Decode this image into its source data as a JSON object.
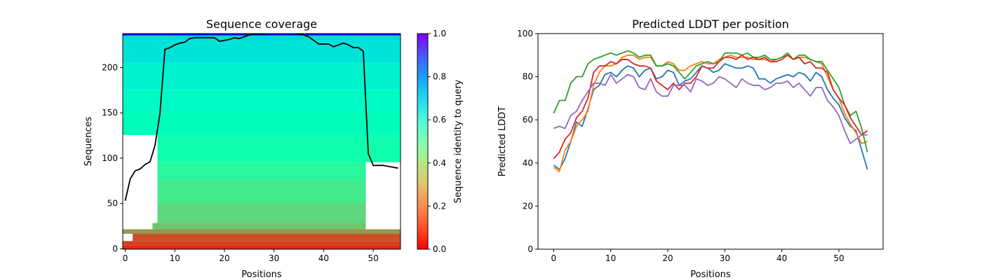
{
  "chart_data": [
    {
      "type": "heatmap",
      "title": "Sequence coverage",
      "xlabel": "Positions",
      "ylabel": "Sequences",
      "xlim": [
        -0.5,
        55.5
      ],
      "ylim": [
        -0.5,
        237.5
      ],
      "xticks": [
        0,
        10,
        20,
        30,
        40,
        50
      ],
      "yticks": [
        0,
        50,
        100,
        150,
        200
      ],
      "colorbar": {
        "label": "Sequence identity to query",
        "range": [
          0.0,
          1.0
        ],
        "ticks": [
          "0.0",
          "0.2",
          "0.4",
          "0.6",
          "0.8",
          "1.0"
        ],
        "colormap": "rainbow_r"
      },
      "coverage_bands": [
        {
          "rows": [
            0,
            3
          ],
          "identity": 0.05,
          "cols": [
            0,
            55
          ]
        },
        {
          "rows": [
            4,
            8
          ],
          "identity": 0.08,
          "cols": [
            0,
            55
          ]
        },
        {
          "rows": [
            9,
            16
          ],
          "identity": 0.1,
          "cols": [
            2,
            55
          ]
        },
        {
          "rows": [
            17,
            21
          ],
          "identity": 0.2,
          "cols": [
            0,
            55
          ]
        },
        {
          "rows": [
            22,
            28
          ],
          "identity": 0.28,
          "cols": [
            6,
            48
          ]
        },
        {
          "rows": [
            29,
            50
          ],
          "identity": 0.32,
          "cols": [
            7,
            48
          ]
        },
        {
          "rows": [
            51,
            75
          ],
          "identity": 0.37,
          "cols": [
            7,
            48
          ]
        },
        {
          "rows": [
            76,
            95
          ],
          "identity": 0.42,
          "cols": [
            7,
            48
          ]
        },
        {
          "rows": [
            96,
            125
          ],
          "identity": 0.47,
          "cols": [
            7,
            55
          ]
        },
        {
          "rows": [
            126,
            150
          ],
          "identity": 0.52,
          "cols": [
            0,
            55
          ]
        },
        {
          "rows": [
            151,
            175
          ],
          "identity": 0.56,
          "cols": [
            0,
            55
          ]
        },
        {
          "rows": [
            176,
            205
          ],
          "identity": 0.6,
          "cols": [
            0,
            55
          ]
        },
        {
          "rows": [
            206,
            230
          ],
          "identity": 0.65,
          "cols": [
            0,
            55
          ]
        },
        {
          "rows": [
            231,
            235
          ],
          "identity": 0.68,
          "cols": [
            0,
            55
          ]
        },
        {
          "rows": [
            236,
            237
          ],
          "identity": 1.0,
          "cols": [
            0,
            55
          ]
        }
      ],
      "coverage_line": [
        53,
        77,
        86,
        88,
        93,
        96,
        114,
        149,
        220,
        222,
        225,
        227,
        228,
        232,
        233,
        233,
        233,
        233,
        233,
        229,
        230,
        231,
        233,
        232,
        234,
        236,
        237,
        237,
        237,
        238,
        238,
        238,
        238,
        238,
        238,
        237,
        236,
        234,
        230,
        226,
        226,
        226,
        223,
        225,
        227,
        225,
        222,
        222,
        218,
        105,
        92,
        92,
        92,
        91,
        90,
        89
      ]
    },
    {
      "type": "line",
      "title": "Predicted LDDT per position",
      "xlabel": "Positions",
      "ylabel": "Predicted LDDT",
      "xlim": [
        -2.75,
        57.75
      ],
      "ylim": [
        0,
        100
      ],
      "xticks": [
        0,
        10,
        20,
        30,
        40,
        50
      ],
      "yticks": [
        0,
        20,
        40,
        60,
        80,
        100
      ],
      "x_start": 0,
      "series": [
        {
          "color": "#1f77b4",
          "values": [
            39,
            37,
            42,
            50,
            59,
            57,
            65,
            74,
            76,
            81,
            82,
            80,
            83,
            85,
            84,
            80,
            83,
            84,
            79,
            80,
            83,
            82,
            76,
            78,
            79,
            82,
            85,
            84,
            82,
            83,
            86,
            85,
            84,
            84,
            85,
            84,
            79,
            79,
            77,
            79,
            80,
            81,
            80,
            82,
            81,
            78,
            82,
            80,
            74,
            70,
            67,
            61,
            57,
            55,
            46,
            37
          ]
        },
        {
          "color": "#ff7f0e",
          "values": [
            38,
            36,
            46,
            50,
            57,
            60,
            64,
            76,
            82,
            85,
            85,
            86,
            89,
            90,
            90,
            88,
            89,
            89,
            85,
            85,
            87,
            86,
            83,
            83,
            85,
            86,
            87,
            86,
            86,
            88,
            89,
            90,
            89,
            89,
            89,
            88,
            88,
            88,
            87,
            88,
            89,
            90,
            88,
            89,
            89,
            88,
            87,
            86,
            80,
            74,
            70,
            63,
            58,
            54,
            49,
            50
          ]
        },
        {
          "color": "#2ca02c",
          "values": [
            63,
            69,
            69,
            77,
            80,
            80,
            86,
            88,
            89,
            90,
            91,
            90,
            91,
            92,
            91,
            89,
            90,
            90,
            85,
            85,
            86,
            85,
            82,
            79,
            82,
            85,
            86,
            87,
            86,
            87,
            91,
            91,
            91,
            90,
            91,
            89,
            89,
            90,
            88,
            88,
            89,
            91,
            88,
            90,
            90,
            88,
            87,
            87,
            83,
            79,
            75,
            67,
            62,
            64,
            56,
            45
          ]
        },
        {
          "color": "#d62728",
          "values": [
            42,
            45,
            51,
            54,
            61,
            64,
            70,
            82,
            85,
            85,
            87,
            86,
            88,
            88,
            86,
            85,
            85,
            84,
            78,
            76,
            74,
            77,
            74,
            77,
            77,
            80,
            85,
            84,
            84,
            87,
            89,
            89,
            88,
            90,
            88,
            89,
            88,
            89,
            87,
            87,
            88,
            90,
            88,
            89,
            86,
            87,
            84,
            84,
            82,
            74,
            70,
            67,
            61,
            57,
            53,
            55
          ]
        },
        {
          "color": "#9467bd",
          "values": [
            56,
            57,
            56,
            62,
            64,
            69,
            73,
            77,
            77,
            76,
            81,
            77,
            79,
            81,
            80,
            75,
            74,
            79,
            73,
            71,
            71,
            76,
            76,
            76,
            73,
            79,
            78,
            76,
            77,
            80,
            79,
            77,
            75,
            79,
            77,
            76,
            76,
            74,
            75,
            77,
            77,
            78,
            75,
            77,
            74,
            71,
            75,
            75,
            69,
            66,
            62,
            55,
            49,
            51,
            53,
            53
          ]
        }
      ]
    }
  ]
}
